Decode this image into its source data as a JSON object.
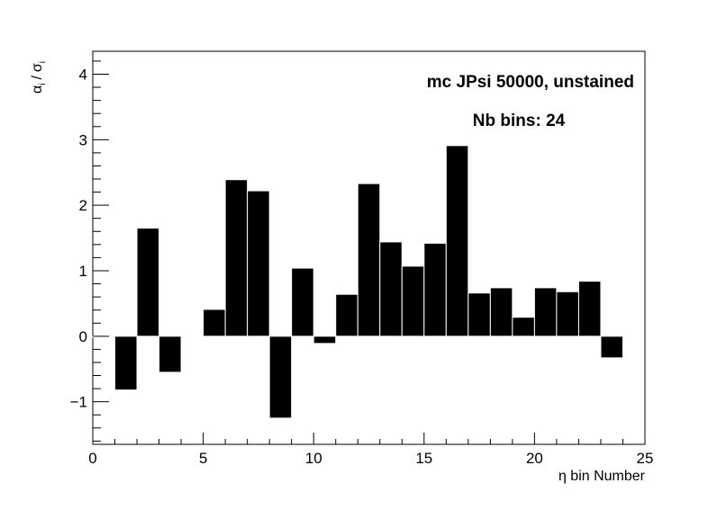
{
  "chart_data": {
    "type": "bar",
    "annotations": [
      "mc JPsi 50000, unstained",
      "Nb bins: 24"
    ],
    "xlabel": "η bin Number",
    "ylabel": {
      "alpha": "α",
      "sigma": "σ",
      "sub": "i",
      "slash": "/"
    },
    "xlim": [
      0,
      25
    ],
    "ylim": [
      -1.65,
      4.35
    ],
    "xticks": [
      0,
      5,
      10,
      15,
      20,
      25
    ],
    "yticks": [
      -1,
      0,
      1,
      2,
      3,
      4
    ],
    "xtick_labels": [
      "0",
      "5",
      "10",
      "15",
      "20",
      "25"
    ],
    "ytick_labels": [
      "−1",
      "0",
      "1",
      "2",
      "3",
      "4"
    ],
    "bin_width": 1,
    "categories": [
      0,
      1,
      2,
      3,
      4,
      5,
      6,
      7,
      8,
      9,
      10,
      11,
      12,
      13,
      14,
      15,
      16,
      17,
      18,
      19,
      20,
      21,
      22,
      23
    ],
    "values": [
      0.0,
      -0.82,
      1.65,
      -0.55,
      0.01,
      0.41,
      2.39,
      2.22,
      -1.25,
      1.04,
      -0.11,
      0.64,
      2.33,
      1.44,
      1.07,
      1.42,
      2.91,
      0.66,
      0.74,
      0.29,
      0.74,
      0.68,
      0.84,
      -0.33
    ],
    "bar_color": "#000000",
    "grid": false
  }
}
